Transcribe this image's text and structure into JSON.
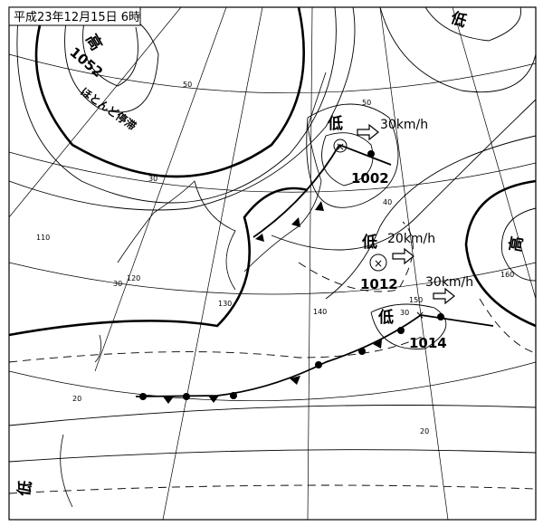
{
  "title": "平成23年12月15日 6時",
  "systems": [
    {
      "type": "high",
      "symbol": "高",
      "pressure": "1052",
      "note": "ほとんど停滞"
    },
    {
      "type": "low",
      "symbol": "低",
      "pressure": "1002",
      "speed": "30km/h"
    },
    {
      "type": "low",
      "symbol": "低",
      "pressure": "1012",
      "speed": "20km/h"
    },
    {
      "type": "low",
      "symbol": "低",
      "pressure": "1014",
      "speed": "30km/h"
    },
    {
      "type": "high",
      "symbol": "高"
    },
    {
      "type": "low",
      "symbol": "低",
      "position": "top-right"
    },
    {
      "type": "low",
      "symbol": "低",
      "position": "bottom-left"
    }
  ],
  "grid_labels": {
    "lat": [
      "50",
      "50",
      "40",
      "30",
      "30",
      "30",
      "20",
      "20"
    ],
    "lon": [
      "110",
      "120",
      "130",
      "140",
      "150",
      "160"
    ]
  },
  "colors": {
    "ink": "#000000",
    "background": "#ffffff"
  }
}
